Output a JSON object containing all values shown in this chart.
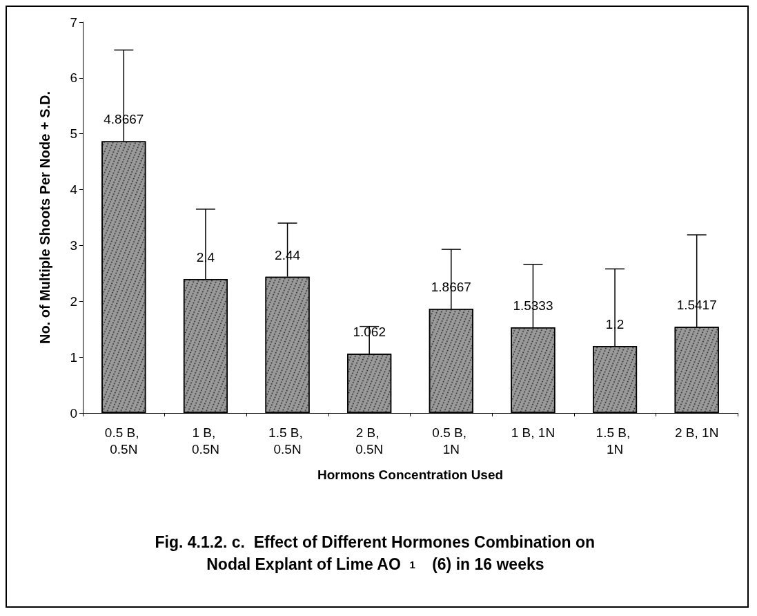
{
  "chart_data": {
    "type": "bar",
    "title": "Fig. 4.1.2. c.  Effect of Different Hormones Combination on Nodal Explant of Lime AO$_{1}$ (6) in 16 weeks",
    "xlabel": "Hormons Concentration Used",
    "ylabel": "No. of Multiple Shoots Per Node + S.D.",
    "categories": [
      "0.5 B, 0.5N",
      "1 B, 0.5N",
      "1.5 B, 0.5N",
      "2 B, 0.5N",
      "0.5 B, 1N",
      "1 B, 1N",
      "1.5 B, 1N",
      "2 B, 1N"
    ],
    "values": [
      4.8667,
      2.4,
      2.44,
      1.062,
      1.8667,
      1.5333,
      1.2,
      1.5417
    ],
    "errors": [
      [
        4.8667,
        6.5
      ],
      [
        2.4,
        3.65
      ],
      [
        2.44,
        3.4
      ],
      [
        1.062,
        1.55
      ],
      [
        1.8667,
        2.93
      ],
      [
        1.5333,
        2.66
      ],
      [
        1.2,
        2.58
      ],
      [
        1.5417,
        3.19
      ]
    ],
    "color": "#9a9a9a",
    "ylim": [
      0,
      7
    ],
    "yticks": [
      0,
      1,
      2,
      3,
      4,
      5,
      6,
      7
    ],
    "grid": false,
    "data_labels": true
  }
}
